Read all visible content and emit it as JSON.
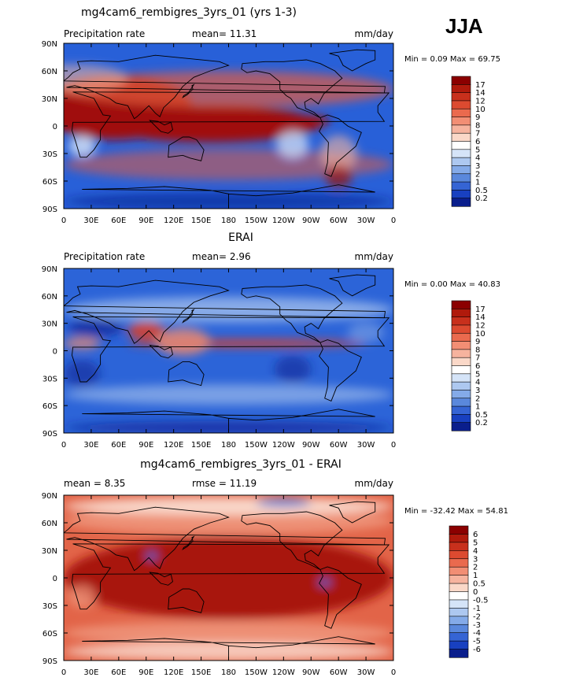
{
  "season": "JJA",
  "lon_ticks": [
    "0",
    "30E",
    "60E",
    "90E",
    "120E",
    "150E",
    "180",
    "150W",
    "120W",
    "90W",
    "60W",
    "30W",
    "0"
  ],
  "lat_ticks": [
    "90N",
    "60N",
    "30N",
    "0",
    "30S",
    "60S",
    "90S"
  ],
  "chart_data": [
    {
      "type": "heatmap",
      "title": "mg4cam6_rembigres_3yrs_01 (yrs 1-3)",
      "left_label": "Precipitation rate",
      "stat_text": "mean=  11.31",
      "units": "mm/day",
      "range_text": "Min =   0.09  Max =  69.75",
      "min": 0.09,
      "max": 69.75,
      "mean": 11.31,
      "colorbar": {
        "levels": [
          "17",
          "14",
          "12",
          "10",
          "9",
          "8",
          "7",
          "6",
          "5",
          "4",
          "3",
          "2",
          "1",
          "0.5",
          "0.2"
        ],
        "colors": [
          "#8b0000",
          "#b01a0c",
          "#c8301c",
          "#dc4a30",
          "#ea6a4e",
          "#f28e74",
          "#f6b39e",
          "#fad8c8",
          "#ffffff",
          "#d5e4f8",
          "#adc8f0",
          "#84aae8",
          "#5a88dc",
          "#3564d4",
          "#1840c0",
          "#0a1e8c"
        ]
      },
      "map_palette": {
        "ocean": "#2860d8",
        "deep": "#0a1e8c",
        "wet": "#a01008",
        "mid": "#e25c40",
        "light": "#f6b8a0",
        "pale": "#c8d8f4",
        "coast": "#000000"
      }
    },
    {
      "type": "heatmap",
      "title": "ERAI",
      "left_label": "Precipitation rate",
      "stat_text": "mean=   2.96",
      "units": "mm/day",
      "range_text": "Min =   0.00  Max =  40.83",
      "min": 0.0,
      "max": 40.83,
      "mean": 2.96,
      "colorbar": {
        "levels": [
          "17",
          "14",
          "12",
          "10",
          "9",
          "8",
          "7",
          "6",
          "5",
          "4",
          "3",
          "2",
          "1",
          "0.5",
          "0.2"
        ],
        "colors": [
          "#8b0000",
          "#b01a0c",
          "#c8301c",
          "#dc4a30",
          "#ea6a4e",
          "#f28e74",
          "#f6b39e",
          "#fad8c8",
          "#ffffff",
          "#d5e4f8",
          "#adc8f0",
          "#84aae8",
          "#5a88dc",
          "#3564d4",
          "#1840c0",
          "#0a1e8c"
        ]
      },
      "map_palette": {
        "ocean": "#2c64d8",
        "deep": "#0c2494",
        "wet": "#d8402c",
        "mid": "#f08c70",
        "light": "#aec8ee",
        "pale": "#7ea4e4",
        "coast": "#000000"
      }
    },
    {
      "type": "heatmap",
      "title": "mg4cam6_rembigres_3yrs_01 - ERAI",
      "left_label": "mean =    8.35",
      "stat_text": "rmse =   11.19",
      "units": "mm/day",
      "range_text": "Min = -32.42  Max =  54.81",
      "min": -32.42,
      "max": 54.81,
      "mean": 8.35,
      "rmse": 11.19,
      "colorbar": {
        "levels": [
          "6",
          "5",
          "4",
          "3",
          "2",
          "1",
          "0.5",
          "0",
          "-0.5",
          "-1",
          "-2",
          "-3",
          "-4",
          "-5",
          "-6"
        ],
        "colors": [
          "#8b0000",
          "#b01a0c",
          "#c8301c",
          "#dc4a30",
          "#ea6a4e",
          "#f28e74",
          "#f6b39e",
          "#fad8c8",
          "#ffffff",
          "#d5e4f8",
          "#adc8f0",
          "#84aae8",
          "#5a88dc",
          "#3564d4",
          "#1840c0",
          "#0a1e8c"
        ]
      },
      "map_palette": {
        "ocean": "#e26448",
        "deep": "#8b0000",
        "wet": "#a81408",
        "mid": "#f09a80",
        "light": "#fbe0d4",
        "pale": "#3a64d4",
        "coast": "#000000"
      }
    }
  ]
}
